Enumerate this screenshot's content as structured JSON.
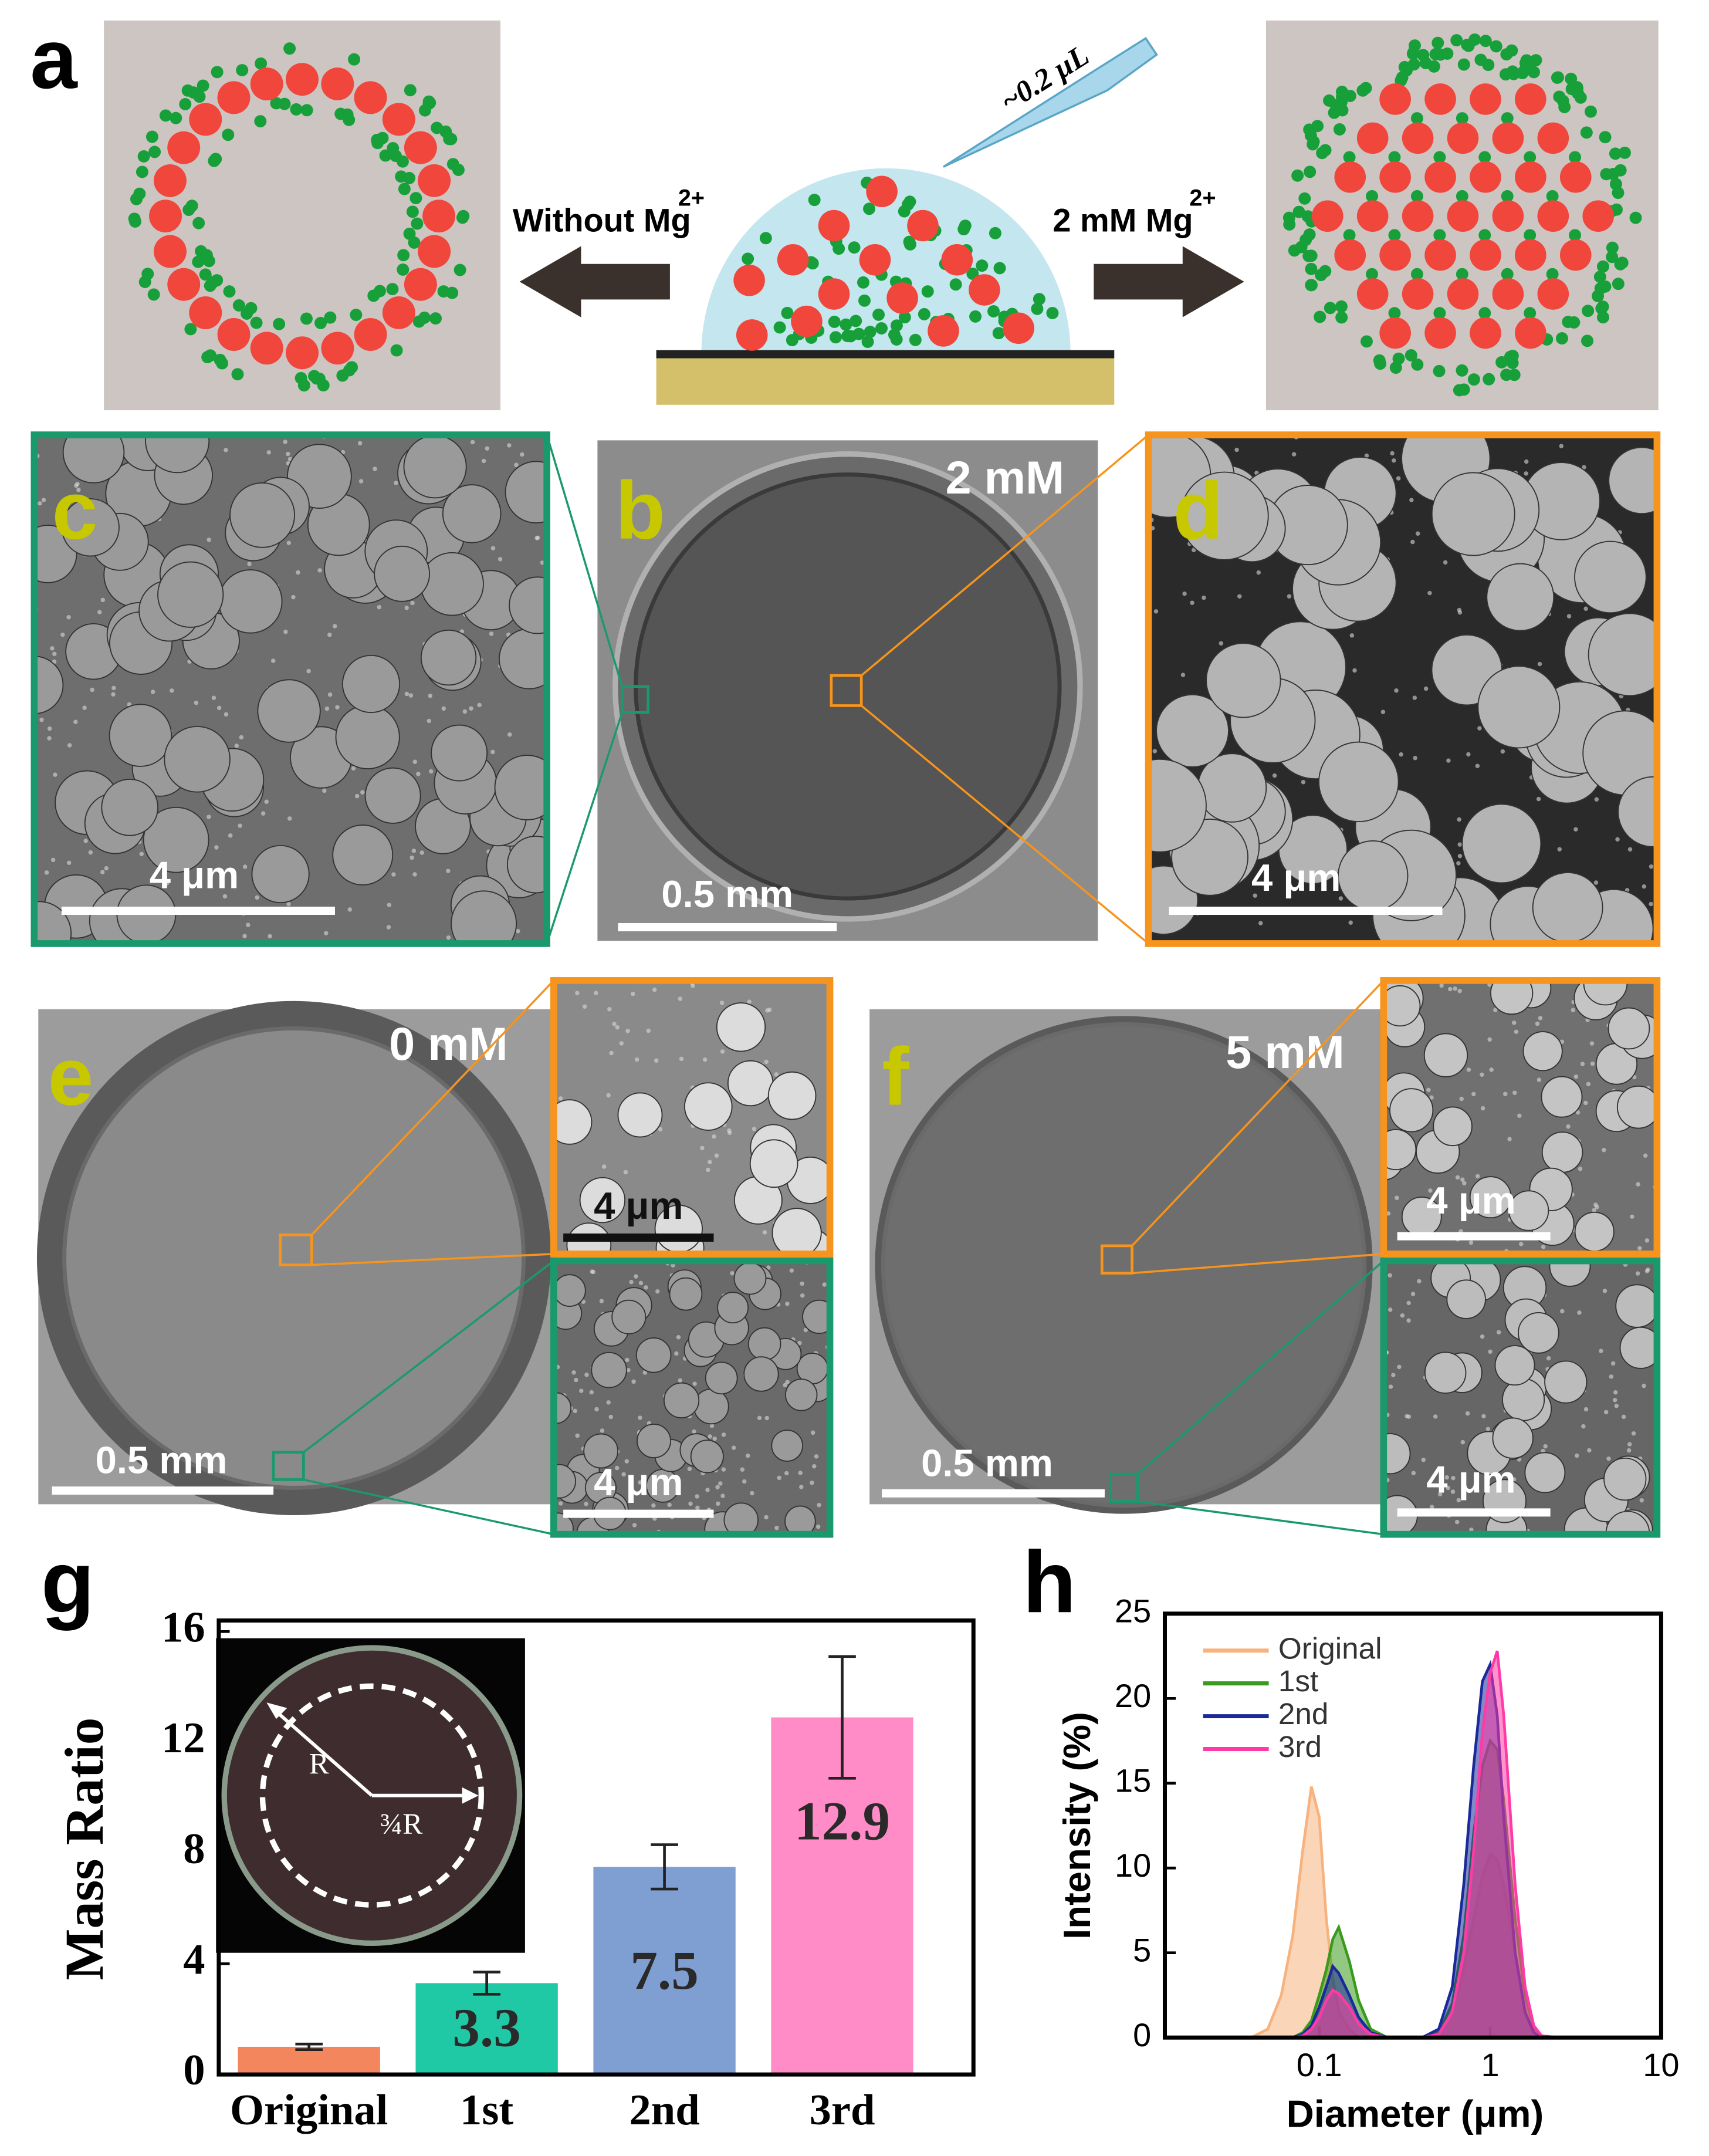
{
  "panel_a": {
    "label": "a",
    "volume": "~0.2 μL",
    "left_arrow": {
      "text": "Without Mg",
      "superscript": "2+"
    },
    "right_arrow": {
      "text": "2 mM Mg",
      "superscript": "2+"
    }
  },
  "panel_b": {
    "label": "b",
    "concentration": "2 mM",
    "scale_bar": "0.5 mm"
  },
  "panel_c": {
    "label": "c",
    "scale_bar": "4 μm"
  },
  "panel_d": {
    "label": "d",
    "scale_bar": "4 μm"
  },
  "panel_e": {
    "label": "e",
    "concentration": "0 mM",
    "scale_bar": "0.5 mm",
    "inset_top_scale_bar": "4 μm",
    "inset_bottom_scale_bar": "4 μm"
  },
  "panel_f": {
    "label": "f",
    "concentration": "5 mM",
    "scale_bar": "0.5 mm",
    "inset_top_scale_bar": "4 μm",
    "inset_bottom_scale_bar": "4 μm"
  },
  "chart_data": [
    {
      "type": "bar",
      "panel_label": "g",
      "ylabel": "Mass Ratio",
      "categories": [
        "Original",
        "1st",
        "2nd",
        "3rd"
      ],
      "values": [
        1.0,
        3.3,
        7.5,
        12.9
      ],
      "errors": [
        0.1,
        0.4,
        0.8,
        2.2
      ],
      "value_labels": [
        null,
        "3.3",
        "7.5",
        "12.9"
      ],
      "colors": [
        "#f4865e",
        "#1fc9a5",
        "#7f9fd2",
        "#ff8cc6"
      ],
      "ylim": [
        0,
        16.4
      ],
      "yticks": [
        0,
        4,
        8,
        12,
        16
      ],
      "inset_annotations": [
        "R",
        "¾R"
      ]
    },
    {
      "type": "area",
      "panel_label": "h",
      "xlabel": "Diameter (μm)",
      "ylabel": "Intensity (%)",
      "xscale": "log",
      "xlim": [
        0.0125,
        10
      ],
      "xticks": [
        0.1,
        1,
        10
      ],
      "ylim": [
        0,
        25
      ],
      "yticks": [
        0,
        5,
        10,
        15,
        20,
        25
      ],
      "legend": "upper left",
      "x": [
        0.04,
        0.05,
        0.06,
        0.07,
        0.08,
        0.09,
        0.1,
        0.11,
        0.12,
        0.13,
        0.15,
        0.17,
        0.2,
        0.25,
        0.4,
        0.5,
        0.6,
        0.7,
        0.8,
        0.9,
        1.0,
        1.1,
        1.2,
        1.4,
        1.6,
        1.8,
        2.0,
        2.5
      ],
      "series": [
        {
          "name": "Original",
          "color": "#f7b27e",
          "values": [
            0,
            0.5,
            2.5,
            6,
            11,
            14.8,
            13,
            7,
            3.5,
            1.5,
            0.5,
            0,
            0,
            0,
            0,
            0.3,
            1.5,
            4,
            7,
            9.5,
            10.8,
            10.5,
            9,
            5,
            2,
            0.6,
            0.1,
            0
          ]
        },
        {
          "name": "1st",
          "color": "#3a9a1c",
          "values": [
            0,
            0,
            0,
            0,
            0.3,
            1,
            2.5,
            4,
            5.8,
            6.5,
            4.5,
            2.2,
            0.5,
            0,
            0,
            0.3,
            2,
            6,
            12,
            16,
            17.5,
            17,
            14,
            7,
            2.5,
            0.6,
            0.1,
            0
          ]
        },
        {
          "name": "2nd",
          "color": "#1a2a9a",
          "values": [
            0,
            0,
            0,
            0,
            0.2,
            0.7,
            1.8,
            3,
            4.2,
            3.8,
            2.5,
            1.2,
            0.3,
            0,
            0,
            0.5,
            3,
            9,
            16,
            21,
            22,
            19,
            13,
            5,
            1.5,
            0.3,
            0,
            0
          ]
        },
        {
          "name": "3rd",
          "color": "#ff3aa6",
          "values": [
            0,
            0,
            0,
            0,
            0.1,
            0.5,
            1.2,
            2.2,
            2.8,
            2.6,
            1.8,
            0.8,
            0.2,
            0,
            0,
            0.2,
            1.5,
            5,
            11,
            18,
            21.5,
            22.8,
            19,
            9,
            3,
            0.7,
            0.1,
            0
          ]
        }
      ]
    }
  ]
}
